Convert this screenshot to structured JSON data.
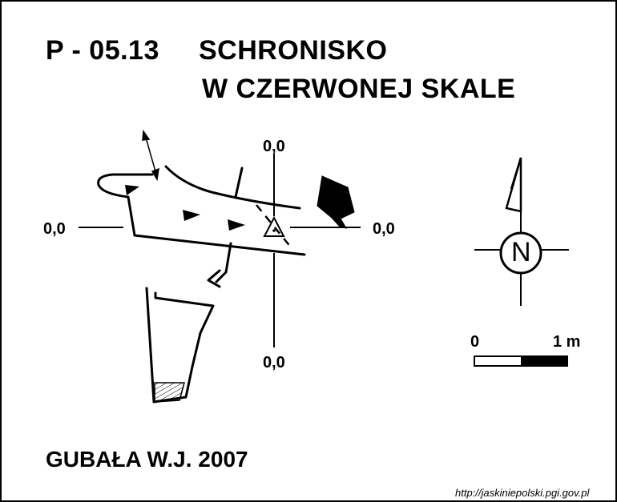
{
  "title": {
    "code": "P - 05.13",
    "name_line1": "SCHRONISKO",
    "name_line2": "W CZERWONEJ SKALE"
  },
  "datum_labels": {
    "top": "0,0",
    "left": "0,0",
    "right": "0,0",
    "bottom": "0,0"
  },
  "north": {
    "letter": "N"
  },
  "scale_bar": {
    "start_label": "0",
    "end_label": "1 m"
  },
  "author": "GUBAŁA W.J. 2007",
  "source": "http://jaskiniepolski.pgi.gov.pl",
  "colors": {
    "ink": "#000000",
    "background": "#ffffff"
  }
}
